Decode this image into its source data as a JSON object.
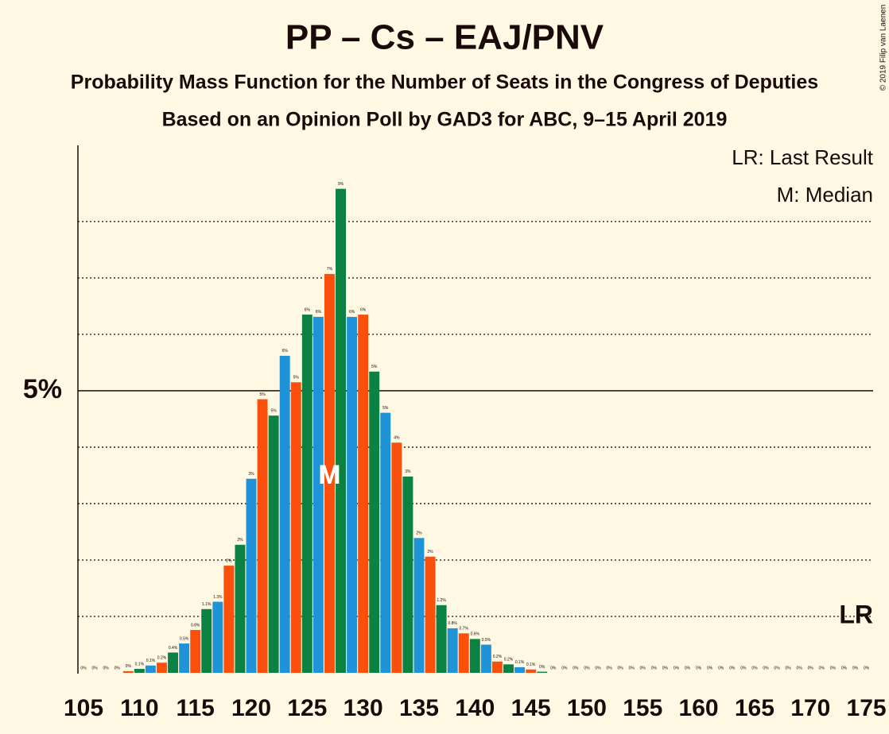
{
  "chart_data": {
    "type": "bar",
    "title": "PP – Cs – EAJ/PNV",
    "subtitle": "Probability Mass Function for the Number of Seats in the Congress of Deputies",
    "subtitle2": "Based on an Opinion Poll by GAD3 for ABC, 9–15 April 2019",
    "copyright": "© 2019 Filip van Laenen",
    "legend_notes": [
      "LR: Last Result",
      "M: Median"
    ],
    "median": {
      "x": 127,
      "label": "M"
    },
    "last_result": {
      "x": 175,
      "label": "LR"
    },
    "colors": [
      "#1f93d8",
      "#fb500c",
      "#0b8241"
    ],
    "x": [
      105,
      106,
      107,
      108,
      109,
      110,
      111,
      112,
      113,
      114,
      115,
      116,
      117,
      118,
      119,
      120,
      121,
      122,
      123,
      124,
      125,
      126,
      127,
      128,
      129,
      130,
      131,
      132,
      133,
      134,
      135,
      136,
      137,
      138,
      139,
      140,
      141,
      142,
      143,
      144,
      145,
      146,
      147,
      148,
      149,
      150,
      151,
      152,
      153,
      154,
      155,
      156,
      157,
      158,
      159,
      160,
      161,
      162,
      163,
      164,
      165,
      166,
      167,
      168,
      169,
      170,
      171,
      172,
      173,
      174,
      175
    ],
    "values": [
      0,
      0,
      0,
      0,
      0.03,
      0.07,
      0.13,
      0.18,
      0.36,
      0.52,
      0.76,
      1.13,
      1.26,
      1.9,
      2.27,
      3.44,
      4.85,
      4.56,
      5.62,
      5.15,
      6.35,
      6.31,
      7.07,
      8.58,
      6.31,
      6.35,
      5.34,
      4.61,
      4.08,
      3.48,
      2.39,
      2.06,
      1.2,
      0.79,
      0.7,
      0.6,
      0.5,
      0.2,
      0.15,
      0.1,
      0.06,
      0.02,
      0,
      0,
      0,
      0,
      0,
      0,
      0,
      0,
      0,
      0,
      0,
      0,
      0,
      0,
      0,
      0,
      0,
      0,
      0,
      0,
      0,
      0,
      0,
      0,
      0,
      0,
      0,
      0,
      0
    ],
    "value_labels": [
      "0%",
      "0%",
      "0%",
      "0%",
      "0%",
      "0.1%",
      "0.1%",
      "0.2%",
      "0.4%",
      "0.5%",
      "0.8%",
      "1.1%",
      "1.3%",
      "2%",
      "2%",
      "3%",
      "5%",
      "5%",
      "6%",
      "5%",
      "6%",
      "6%",
      "7%",
      "9%",
      "6%",
      "6%",
      "5%",
      "5%",
      "4%",
      "3%",
      "2%",
      "2%",
      "1.2%",
      "0.8%",
      "0.7%",
      "0.6%",
      "0.5%",
      "0.2%",
      "0.2%",
      "0.1%",
      "0.1%",
      "0%",
      "0%",
      "0%",
      "0%",
      "0%",
      "0%",
      "0%",
      "0%",
      "0%",
      "0%",
      "0%",
      "0%",
      "0%",
      "0%",
      "0%",
      "0%",
      "0%",
      "0%",
      "0%",
      "0%",
      "0%",
      "0%",
      "0%",
      "0%",
      "0%",
      "0%",
      "0%",
      "0%",
      "0%",
      "0%"
    ],
    "xlim": [
      104.5,
      175.6
    ],
    "xticks": [
      105,
      110,
      115,
      120,
      125,
      130,
      135,
      140,
      145,
      150,
      155,
      160,
      165,
      170,
      175
    ],
    "ylim": [
      0,
      9.35
    ],
    "yticks": [
      {
        "value": 5,
        "label": "5%"
      }
    ],
    "minor_yticks": [
      1,
      2,
      3,
      4,
      6,
      7,
      8
    ]
  }
}
